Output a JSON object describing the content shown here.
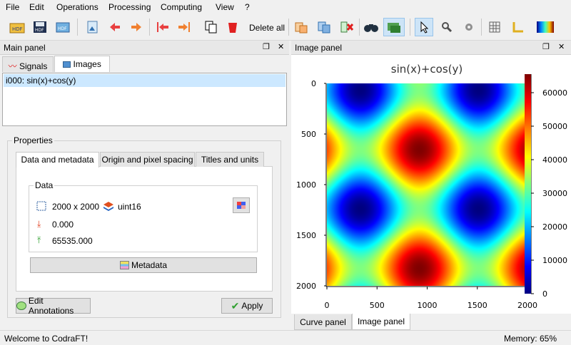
{
  "menubar": {
    "items": [
      "File",
      "Edit",
      "Operations",
      "Processing",
      "Computing",
      "View",
      "?"
    ]
  },
  "toolbar": {
    "delete_all_label": "Delete all"
  },
  "main_panel": {
    "title": "Main panel",
    "tabs": [
      "Signals",
      "Images"
    ],
    "list_items": [
      "i000: sin(x)+cos(y)"
    ],
    "properties": {
      "title": "Properties",
      "tabs": [
        "Data and metadata",
        "Origin and pixel spacing",
        "Titles and units"
      ],
      "data_group_title": "Data",
      "size": "2000 x 2000",
      "dtype": "uint16",
      "min": "0.000",
      "max": "65535.000",
      "metadata_button": "Metadata",
      "edit_annotations_button": "Edit Annotations",
      "apply_button": "Apply"
    }
  },
  "image_panel": {
    "title": "Image panel",
    "plot_title": "sin(x)+cos(y)",
    "bottom_tabs": [
      "Curve panel",
      "Image panel"
    ]
  },
  "statusbar": {
    "left": "Welcome to CodraFT!",
    "right": "Memory: 65%"
  },
  "chart_data": {
    "type": "heatmap",
    "title": "sin(x)+cos(y)",
    "x_ticks": [
      0,
      500,
      1000,
      1500,
      2000
    ],
    "y_ticks": [
      0,
      500,
      1000,
      1500,
      2000
    ],
    "xlim": [
      0,
      2000
    ],
    "ylim": [
      0,
      2000
    ],
    "colorbar_ticks": [
      0,
      10000,
      20000,
      30000,
      40000,
      50000,
      60000
    ],
    "colorbar_range": [
      0,
      65535
    ],
    "colormap": "jet"
  }
}
